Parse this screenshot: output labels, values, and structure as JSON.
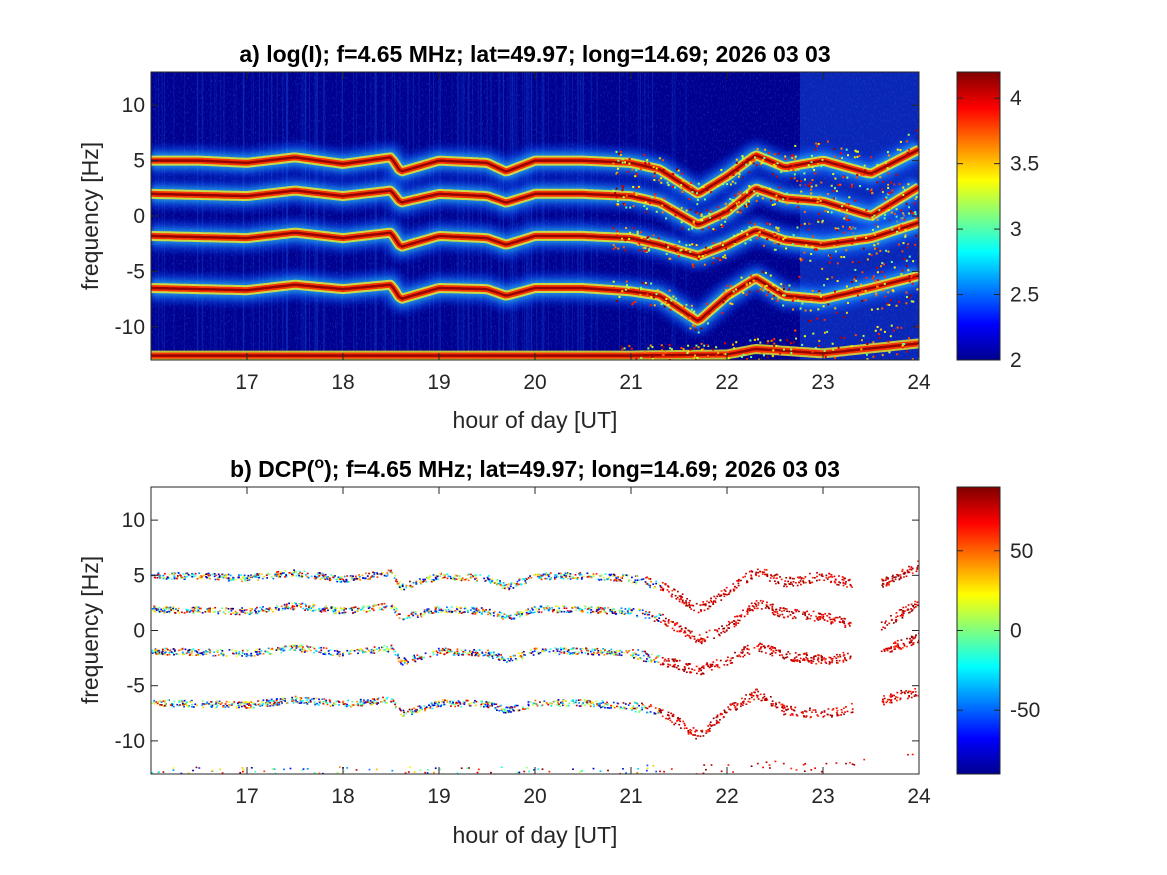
{
  "chart_data": [
    {
      "type": "heatmap",
      "title_text": "a) log(I); f=4.65 MHz;  lat=49.97; long=14.69; 2026 03 03",
      "xlabel": "hour of day [UT]",
      "ylabel": "frequency [Hz]",
      "xlim": [
        16,
        24
      ],
      "ylim": [
        -13,
        13
      ],
      "xticks": [
        17,
        18,
        19,
        20,
        21,
        22,
        23,
        24
      ],
      "xtick_labels": [
        "17",
        "18",
        "19",
        "20",
        "21",
        "22",
        "23",
        "24"
      ],
      "yticks": [
        10,
        5,
        0,
        -5,
        -10
      ],
      "ytick_labels": [
        "10",
        "5",
        "0",
        "-5",
        "-10"
      ],
      "colorbar": {
        "colormap": "jet",
        "range": [
          2,
          4.2
        ],
        "ticks": [
          4,
          3.5,
          3,
          2.5,
          2
        ],
        "tick_labels": [
          "4",
          "3.5",
          "3",
          "2.5",
          "2"
        ]
      },
      "background": "#00008f",
      "traces": [
        {
          "name": "trace_upper",
          "x": [
            16,
            16.5,
            17,
            17.5,
            18,
            18.5,
            18.6,
            19,
            19.5,
            19.7,
            20,
            20.5,
            21,
            21.3,
            21.7,
            22,
            22.3,
            22.6,
            23,
            23.5,
            24
          ],
          "y": [
            5,
            5,
            4.8,
            5.3,
            4.7,
            5.3,
            4,
            5,
            4.8,
            4,
            5,
            5,
            4.8,
            4.2,
            2,
            3.6,
            5.5,
            4.4,
            5,
            3.8,
            6
          ]
        },
        {
          "name": "trace_mid_upper",
          "x": [
            16,
            16.5,
            17,
            17.5,
            18,
            18.5,
            18.6,
            19,
            19.5,
            19.7,
            20,
            20.5,
            21,
            21.3,
            21.7,
            22,
            22.3,
            22.6,
            23,
            23.5,
            24
          ],
          "y": [
            2,
            1.9,
            1.8,
            2.3,
            1.8,
            2.3,
            1.2,
            2,
            1.8,
            1.2,
            2,
            2,
            1.8,
            1.2,
            -0.8,
            0.4,
            2.5,
            1.6,
            1.3,
            0,
            2.6
          ]
        },
        {
          "name": "trace_mid_lower",
          "x": [
            16,
            16.5,
            17,
            17.5,
            18,
            18.5,
            18.6,
            19,
            19.5,
            19.7,
            20,
            20.5,
            21,
            21.3,
            21.7,
            22,
            22.3,
            22.6,
            23,
            23.5,
            24
          ],
          "y": [
            -1.8,
            -1.9,
            -2,
            -1.5,
            -2,
            -1.5,
            -2.8,
            -1.8,
            -2,
            -2.6,
            -1.8,
            -1.8,
            -2,
            -2.6,
            -3.6,
            -2.6,
            -1.3,
            -2.2,
            -2.6,
            -2,
            -0.6
          ]
        },
        {
          "name": "trace_lower",
          "x": [
            16,
            16.5,
            17,
            17.5,
            18,
            18.5,
            18.6,
            19,
            19.5,
            19.7,
            20,
            20.5,
            21,
            21.3,
            21.7,
            22,
            22.3,
            22.6,
            23,
            23.5,
            24
          ],
          "y": [
            -6.5,
            -6.6,
            -6.7,
            -6.2,
            -6.6,
            -6.2,
            -7.5,
            -6.5,
            -6.6,
            -7.2,
            -6.5,
            -6.5,
            -6.8,
            -7.2,
            -9.5,
            -7.2,
            -5.6,
            -7.2,
            -7.5,
            -6.5,
            -5.4
          ]
        },
        {
          "name": "trace_bottom",
          "x": [
            16,
            17,
            18,
            19,
            20,
            21,
            22,
            22.3,
            23,
            24
          ],
          "y": [
            -12.6,
            -12.6,
            -12.6,
            -12.6,
            -12.6,
            -12.6,
            -12.5,
            -12,
            -12.4,
            -11.5
          ]
        }
      ]
    },
    {
      "type": "scatter",
      "title_text": "b) DCP(",
      "title_sup": "o",
      "title_rest": "); f=4.65 MHz;  lat=49.97; long=14.69; 2026 03 03",
      "xlabel": "hour of day [UT]",
      "ylabel": "frequency [Hz]",
      "xlim": [
        16,
        24
      ],
      "ylim": [
        -13,
        13
      ],
      "xticks": [
        17,
        18,
        19,
        20,
        21,
        22,
        23,
        24
      ],
      "xtick_labels": [
        "17",
        "18",
        "19",
        "20",
        "21",
        "22",
        "23",
        "24"
      ],
      "yticks": [
        10,
        5,
        0,
        -5,
        -10
      ],
      "ytick_labels": [
        "10",
        "5",
        "0",
        "-5",
        "-10"
      ],
      "colorbar": {
        "colormap": "jet",
        "range": [
          -90,
          90
        ],
        "ticks": [
          50,
          0,
          -50
        ],
        "tick_labels": [
          "50",
          "0",
          "-50"
        ]
      },
      "background": "#ffffff",
      "points_cutoff_hour": 23.3,
      "traces_same_as_panel_a": true
    }
  ]
}
